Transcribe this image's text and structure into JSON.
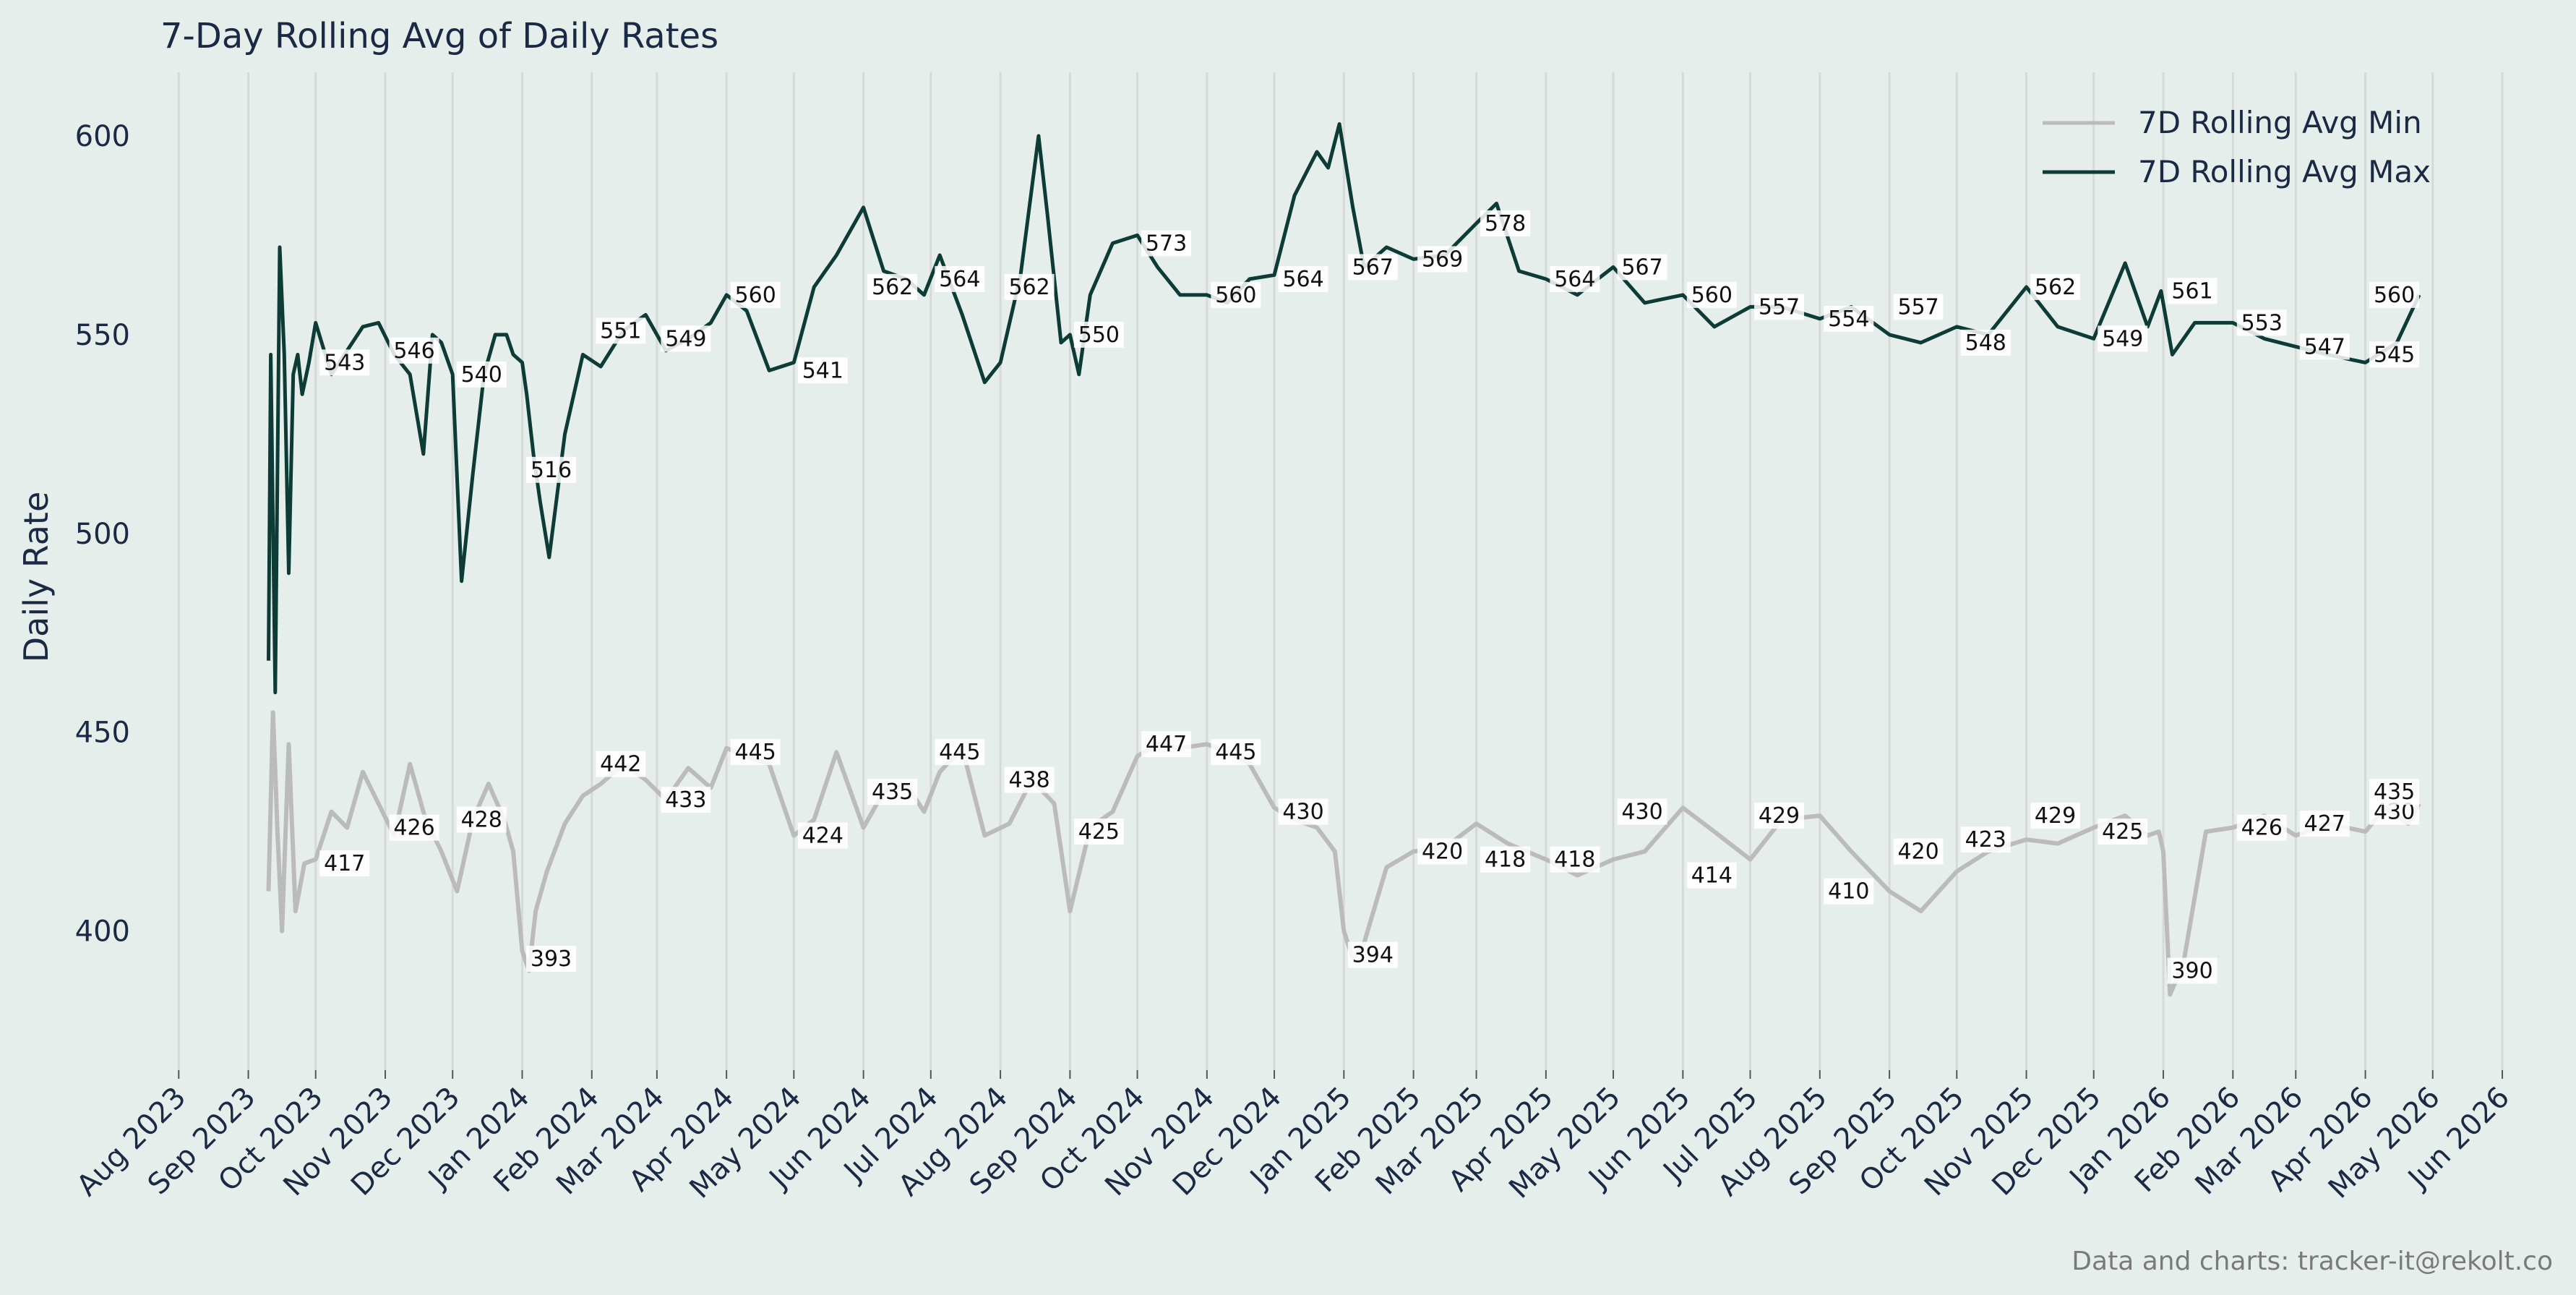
{
  "chart_data": {
    "type": "line",
    "title": "7-Day Rolling Avg of Daily Rates",
    "xlabel": "",
    "ylabel": "Daily Rate",
    "ylim": [
      365,
      616
    ],
    "xlim": [
      "2023-07-20",
      "2026-06-10"
    ],
    "grid": "vertical",
    "legend_position": "top-right",
    "x_ticks": [
      "Aug 2023",
      "Sep 2023",
      "Oct 2023",
      "Nov 2023",
      "Dec 2023",
      "Jan 2024",
      "Feb 2024",
      "Mar 2024",
      "Apr 2024",
      "May 2024",
      "Jun 2024",
      "Jul 2024",
      "Aug 2024",
      "Sep 2024",
      "Oct 2024",
      "Nov 2024",
      "Dec 2024",
      "Jan 2025",
      "Feb 2025",
      "Mar 2025",
      "Apr 2025",
      "May 2025",
      "Jun 2025",
      "Jul 2025",
      "Aug 2025",
      "Sep 2025",
      "Oct 2025",
      "Nov 2025",
      "Dec 2025",
      "Jan 2026",
      "Feb 2026",
      "Mar 2026",
      "Apr 2026",
      "May 2026",
      "Jun 2026"
    ],
    "x_tick_dates": [
      "2023-08-01",
      "2023-09-01",
      "2023-10-01",
      "2023-11-01",
      "2023-12-01",
      "2024-01-01",
      "2024-02-01",
      "2024-03-01",
      "2024-04-01",
      "2024-05-01",
      "2024-06-01",
      "2024-07-01",
      "2024-08-01",
      "2024-09-01",
      "2024-10-01",
      "2024-11-01",
      "2024-12-01",
      "2025-01-01",
      "2025-02-01",
      "2025-03-01",
      "2025-04-01",
      "2025-05-01",
      "2025-06-01",
      "2025-07-01",
      "2025-08-01",
      "2025-09-01",
      "2025-10-01",
      "2025-11-01",
      "2025-12-01",
      "2026-01-01",
      "2026-02-01",
      "2026-03-01",
      "2026-04-01",
      "2026-05-01",
      "2026-06-01"
    ],
    "y_ticks": [
      400,
      450,
      500,
      550,
      600
    ],
    "series": [
      {
        "name": "7D Rolling Avg Min",
        "color": "#bbbbbb",
        "x": [
          "2023-09-10",
          "2023-09-12",
          "2023-09-14",
          "2023-09-16",
          "2023-09-19",
          "2023-09-22",
          "2023-09-26",
          "2023-10-01",
          "2023-10-08",
          "2023-10-15",
          "2023-10-22",
          "2023-10-29",
          "2023-11-05",
          "2023-11-12",
          "2023-11-19",
          "2023-11-26",
          "2023-12-03",
          "2023-12-10",
          "2023-12-17",
          "2023-12-24",
          "2023-12-28",
          "2024-01-01",
          "2024-01-04",
          "2024-01-07",
          "2024-01-12",
          "2024-01-20",
          "2024-01-28",
          "2024-02-05",
          "2024-02-15",
          "2024-02-25",
          "2024-03-05",
          "2024-03-15",
          "2024-03-25",
          "2024-04-01",
          "2024-04-10",
          "2024-04-20",
          "2024-05-01",
          "2024-05-10",
          "2024-05-20",
          "2024-06-01",
          "2024-06-10",
          "2024-06-20",
          "2024-06-28",
          "2024-07-05",
          "2024-07-15",
          "2024-07-25",
          "2024-08-05",
          "2024-08-15",
          "2024-08-25",
          "2024-09-01",
          "2024-09-10",
          "2024-09-20",
          "2024-10-01",
          "2024-10-10",
          "2024-10-20",
          "2024-11-01",
          "2024-11-10",
          "2024-11-20",
          "2024-12-01",
          "2024-12-10",
          "2024-12-20",
          "2024-12-28",
          "2025-01-01",
          "2025-01-05",
          "2025-01-10",
          "2025-01-20",
          "2025-02-01",
          "2025-02-15",
          "2025-03-01",
          "2025-03-15",
          "2025-04-01",
          "2025-04-15",
          "2025-05-01",
          "2025-05-15",
          "2025-06-01",
          "2025-06-15",
          "2025-07-01",
          "2025-07-15",
          "2025-08-01",
          "2025-08-15",
          "2025-09-01",
          "2025-09-15",
          "2025-10-01",
          "2025-10-15",
          "2025-11-01",
          "2025-11-15",
          "2025-12-01",
          "2025-12-15",
          "2025-12-25",
          "2025-12-30",
          "2026-01-01",
          "2026-01-04",
          "2026-01-10",
          "2026-01-20",
          "2026-02-01",
          "2026-02-15",
          "2026-03-01",
          "2026-03-15",
          "2026-04-01",
          "2026-04-10",
          "2026-04-20",
          "2026-04-25"
        ],
        "values": [
          410,
          455,
          425,
          400,
          447,
          405,
          417,
          418,
          430,
          426,
          440,
          432,
          424,
          442,
          428,
          420,
          410,
          428,
          437,
          428,
          420,
          395,
          390,
          405,
          415,
          427,
          434,
          437,
          442,
          438,
          433,
          441,
          436,
          446,
          444,
          442,
          424,
          428,
          445,
          426,
          435,
          437,
          430,
          440,
          446,
          424,
          427,
          438,
          432,
          405,
          426,
          430,
          444,
          447,
          446,
          447,
          445,
          442,
          431,
          428,
          426,
          420,
          400,
          393,
          397,
          416,
          420,
          421,
          427,
          422,
          418,
          414,
          418,
          420,
          431,
          425,
          418,
          428,
          429,
          420,
          410,
          405,
          415,
          420,
          423,
          422,
          426,
          429,
          424,
          425,
          420,
          384,
          392,
          425,
          426,
          429,
          424,
          427,
          425,
          431,
          427,
          432
        ]
      },
      {
        "name": "7D Rolling Avg Max",
        "color": "#0d3b35",
        "x": [
          "2023-09-10",
          "2023-09-11",
          "2023-09-13",
          "2023-09-15",
          "2023-09-17",
          "2023-09-19",
          "2023-09-21",
          "2023-09-23",
          "2023-09-25",
          "2023-09-28",
          "2023-10-01",
          "2023-10-08",
          "2023-10-15",
          "2023-10-22",
          "2023-10-29",
          "2023-11-05",
          "2023-11-12",
          "2023-11-18",
          "2023-11-22",
          "2023-11-26",
          "2023-12-01",
          "2023-12-05",
          "2023-12-10",
          "2023-12-15",
          "2023-12-20",
          "2023-12-25",
          "2023-12-28",
          "2024-01-01",
          "2024-01-03",
          "2024-01-06",
          "2024-01-09",
          "2024-01-13",
          "2024-01-20",
          "2024-01-28",
          "2024-02-05",
          "2024-02-15",
          "2024-02-25",
          "2024-03-05",
          "2024-03-15",
          "2024-03-25",
          "2024-04-01",
          "2024-04-10",
          "2024-04-20",
          "2024-05-01",
          "2024-05-10",
          "2024-05-20",
          "2024-06-01",
          "2024-06-10",
          "2024-06-20",
          "2024-06-28",
          "2024-07-05",
          "2024-07-15",
          "2024-07-25",
          "2024-08-01",
          "2024-08-10",
          "2024-08-18",
          "2024-08-22",
          "2024-08-28",
          "2024-09-01",
          "2024-09-05",
          "2024-09-10",
          "2024-09-20",
          "2024-10-01",
          "2024-10-10",
          "2024-10-20",
          "2024-11-01",
          "2024-11-10",
          "2024-11-20",
          "2024-12-01",
          "2024-12-10",
          "2024-12-20",
          "2024-12-25",
          "2024-12-30",
          "2025-01-05",
          "2025-01-10",
          "2025-01-20",
          "2025-02-01",
          "2025-02-15",
          "2025-03-01",
          "2025-03-10",
          "2025-03-20",
          "2025-04-01",
          "2025-04-15",
          "2025-05-01",
          "2025-05-15",
          "2025-06-01",
          "2025-06-15",
          "2025-07-01",
          "2025-07-15",
          "2025-08-01",
          "2025-08-15",
          "2025-09-01",
          "2025-09-15",
          "2025-10-01",
          "2025-10-15",
          "2025-11-01",
          "2025-11-15",
          "2025-12-01",
          "2025-12-15",
          "2025-12-25",
          "2025-12-31",
          "2026-01-05",
          "2026-01-15",
          "2026-02-01",
          "2026-02-15",
          "2026-03-01",
          "2026-03-15",
          "2026-04-01",
          "2026-04-15",
          "2026-04-25"
        ],
        "values": [
          468,
          545,
          460,
          572,
          545,
          490,
          540,
          545,
          535,
          543,
          553,
          540,
          546,
          552,
          553,
          545,
          540,
          520,
          550,
          548,
          540,
          488,
          515,
          540,
          550,
          550,
          545,
          543,
          535,
          520,
          508,
          494,
          525,
          545,
          542,
          551,
          555,
          546,
          549,
          553,
          560,
          556,
          541,
          543,
          562,
          570,
          582,
          566,
          564,
          560,
          570,
          555,
          538,
          543,
          565,
          600,
          580,
          548,
          550,
          540,
          560,
          573,
          575,
          567,
          560,
          560,
          558,
          564,
          565,
          585,
          596,
          592,
          603,
          582,
          567,
          572,
          569,
          570,
          578,
          583,
          566,
          564,
          560,
          567,
          558,
          560,
          552,
          557,
          557,
          554,
          557,
          550,
          548,
          552,
          550,
          562,
          552,
          549,
          568,
          552,
          561,
          545,
          553,
          553,
          549,
          547,
          545,
          543,
          548,
          560
        ]
      }
    ],
    "annotations": {
      "min": [
        {
          "x": "2023-10-01",
          "y": 417,
          "label": "417"
        },
        {
          "x": "2023-11-01",
          "y": 426,
          "label": "426"
        },
        {
          "x": "2023-12-01",
          "y": 428,
          "label": "428"
        },
        {
          "x": "2024-01-01",
          "y": 393,
          "label": "393"
        },
        {
          "x": "2024-02-01",
          "y": 442,
          "label": "442"
        },
        {
          "x": "2024-03-01",
          "y": 433,
          "label": "433"
        },
        {
          "x": "2024-04-01",
          "y": 445,
          "label": "445"
        },
        {
          "x": "2024-05-01",
          "y": 424,
          "label": "424"
        },
        {
          "x": "2024-06-01",
          "y": 435,
          "label": "435"
        },
        {
          "x": "2024-07-01",
          "y": 445,
          "label": "445"
        },
        {
          "x": "2024-08-01",
          "y": 438,
          "label": "438"
        },
        {
          "x": "2024-09-01",
          "y": 425,
          "label": "425"
        },
        {
          "x": "2024-10-01",
          "y": 447,
          "label": "447"
        },
        {
          "x": "2024-11-01",
          "y": 445,
          "label": "445"
        },
        {
          "x": "2024-12-01",
          "y": 430,
          "label": "430"
        },
        {
          "x": "2025-01-01",
          "y": 394,
          "label": "394"
        },
        {
          "x": "2025-02-01",
          "y": 420,
          "label": "420"
        },
        {
          "x": "2025-03-01",
          "y": 418,
          "label": "418"
        },
        {
          "x": "2025-04-01",
          "y": 418,
          "label": "418"
        },
        {
          "x": "2025-05-01",
          "y": 430,
          "label": "430"
        },
        {
          "x": "2025-06-01",
          "y": 414,
          "label": "414"
        },
        {
          "x": "2025-07-01",
          "y": 429,
          "label": "429"
        },
        {
          "x": "2025-08-01",
          "y": 410,
          "label": "410"
        },
        {
          "x": "2025-09-01",
          "y": 420,
          "label": "420"
        },
        {
          "x": "2025-10-01",
          "y": 423,
          "label": "423"
        },
        {
          "x": "2025-11-01",
          "y": 429,
          "label": "429"
        },
        {
          "x": "2025-12-01",
          "y": 425,
          "label": "425"
        },
        {
          "x": "2026-01-01",
          "y": 390,
          "label": "390"
        },
        {
          "x": "2026-02-01",
          "y": 426,
          "label": "426"
        },
        {
          "x": "2026-03-01",
          "y": 427,
          "label": "427"
        },
        {
          "x": "2026-04-01",
          "y": 430,
          "label": "430"
        },
        {
          "x": "2026-04-01",
          "y": 435,
          "label": "435"
        }
      ],
      "max": [
        {
          "x": "2023-10-01",
          "y": 543,
          "label": "543"
        },
        {
          "x": "2023-11-01",
          "y": 546,
          "label": "546"
        },
        {
          "x": "2023-12-01",
          "y": 540,
          "label": "540"
        },
        {
          "x": "2024-01-01",
          "y": 516,
          "label": "516"
        },
        {
          "x": "2024-02-01",
          "y": 551,
          "label": "551"
        },
        {
          "x": "2024-03-01",
          "y": 549,
          "label": "549"
        },
        {
          "x": "2024-04-01",
          "y": 560,
          "label": "560"
        },
        {
          "x": "2024-05-01",
          "y": 541,
          "label": "541"
        },
        {
          "x": "2024-06-01",
          "y": 562,
          "label": "562"
        },
        {
          "x": "2024-07-01",
          "y": 564,
          "label": "564"
        },
        {
          "x": "2024-08-01",
          "y": 562,
          "label": "562"
        },
        {
          "x": "2024-09-01",
          "y": 550,
          "label": "550"
        },
        {
          "x": "2024-10-01",
          "y": 573,
          "label": "573"
        },
        {
          "x": "2024-11-01",
          "y": 560,
          "label": "560"
        },
        {
          "x": "2024-12-01",
          "y": 564,
          "label": "564"
        },
        {
          "x": "2025-01-01",
          "y": 567,
          "label": "567"
        },
        {
          "x": "2025-02-01",
          "y": 569,
          "label": "569"
        },
        {
          "x": "2025-03-01",
          "y": 578,
          "label": "578"
        },
        {
          "x": "2025-04-01",
          "y": 564,
          "label": "564"
        },
        {
          "x": "2025-05-01",
          "y": 567,
          "label": "567"
        },
        {
          "x": "2025-06-01",
          "y": 560,
          "label": "560"
        },
        {
          "x": "2025-07-01",
          "y": 557,
          "label": "557"
        },
        {
          "x": "2025-08-01",
          "y": 554,
          "label": "554"
        },
        {
          "x": "2025-09-01",
          "y": 557,
          "label": "557"
        },
        {
          "x": "2025-10-01",
          "y": 548,
          "label": "548"
        },
        {
          "x": "2025-11-01",
          "y": 562,
          "label": "562"
        },
        {
          "x": "2025-12-01",
          "y": 549,
          "label": "549"
        },
        {
          "x": "2026-01-01",
          "y": 561,
          "label": "561"
        },
        {
          "x": "2026-02-01",
          "y": 553,
          "label": "553"
        },
        {
          "x": "2026-03-01",
          "y": 547,
          "label": "547"
        },
        {
          "x": "2026-04-01",
          "y": 545,
          "label": "545"
        },
        {
          "x": "2026-04-01",
          "y": 560,
          "label": "560"
        }
      ]
    }
  },
  "footer": "Data and charts: tracker-it@rekolt.co",
  "colors": {
    "background": "#e6eeeb",
    "text": "#1a2a44",
    "gridline": "#d6d9d7",
    "min_series": "#bbbbbb",
    "max_series": "#0d3b35"
  }
}
